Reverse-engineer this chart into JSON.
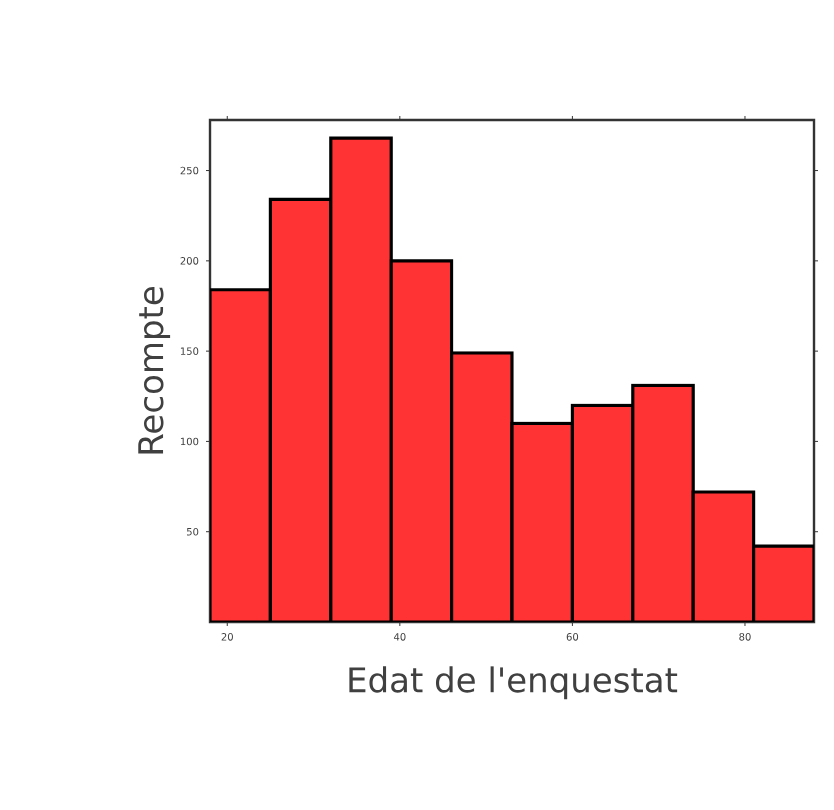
{
  "chart_data": {
    "type": "histogram",
    "xlabel": "Edat de l'enquestat",
    "ylabel": "Recompte",
    "bins": [
      18,
      25,
      32,
      39,
      46,
      53,
      60,
      67,
      74,
      81,
      88
    ],
    "values": [
      184,
      234,
      268,
      200,
      149,
      110,
      120,
      131,
      72,
      42
    ],
    "color": "#ff3333",
    "xlim": [
      18,
      88
    ],
    "ylim": [
      0,
      278
    ],
    "xticks": [
      20,
      40,
      60,
      80
    ],
    "yticks": [
      50,
      100,
      150,
      200,
      250
    ]
  }
}
